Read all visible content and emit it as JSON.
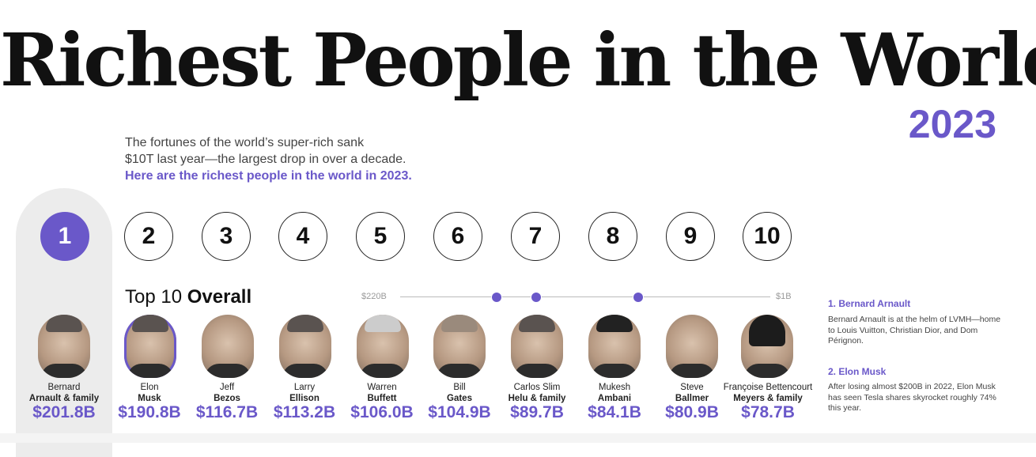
{
  "header": {
    "title": "Richest People in the World",
    "year": "2023",
    "intro_line1": "The fortunes of the world’s super-rich sank",
    "intro_line2": "$10T last year—the largest drop in over a decade.",
    "intro_highlight": "Here are the richest people in the world in 2023."
  },
  "section": {
    "label_prefix": "Top 10",
    "label_bold": "Overall"
  },
  "scale": {
    "max_label": "$220B",
    "min_label": "$1B"
  },
  "ranks": [
    "1",
    "2",
    "3",
    "4",
    "5",
    "6",
    "7",
    "8",
    "9",
    "10"
  ],
  "people": [
    {
      "first": "Bernard",
      "last": "Arnault & family",
      "worth": "$201.8B"
    },
    {
      "first": "Elon",
      "last": "Musk",
      "worth": "$190.8B"
    },
    {
      "first": "Jeff",
      "last": "Bezos",
      "worth": "$116.7B"
    },
    {
      "first": "Larry",
      "last": "Ellison",
      "worth": "$113.2B"
    },
    {
      "first": "Warren",
      "last": "Buffett",
      "worth": "$106.0B"
    },
    {
      "first": "Bill",
      "last": "Gates",
      "worth": "$104.9B"
    },
    {
      "first": "Carlos Slim",
      "last": "Helu & family",
      "worth": "$89.7B"
    },
    {
      "first": "Mukesh",
      "last": "Ambani",
      "worth": "$84.1B"
    },
    {
      "first": "Steve",
      "last": "Ballmer",
      "worth": "$80.9B"
    },
    {
      "first": "Françoise Bettencourt",
      "last": "Meyers & family",
      "worth": "$78.7B"
    }
  ],
  "notes": [
    {
      "title": "1. Bernard Arnault",
      "text": "Bernard Arnault is at the helm of LVMH—home to Louis Vuitton, Christian Dior, and Dom Pérignon."
    },
    {
      "title": "2. Elon Musk",
      "text": "After losing almost $200B in 2022, Elon Musk has seen Tesla shares skyrocket roughly 74% this year."
    }
  ],
  "colors": {
    "accent": "#6a58c9",
    "highlight_bg": "#ececec"
  }
}
